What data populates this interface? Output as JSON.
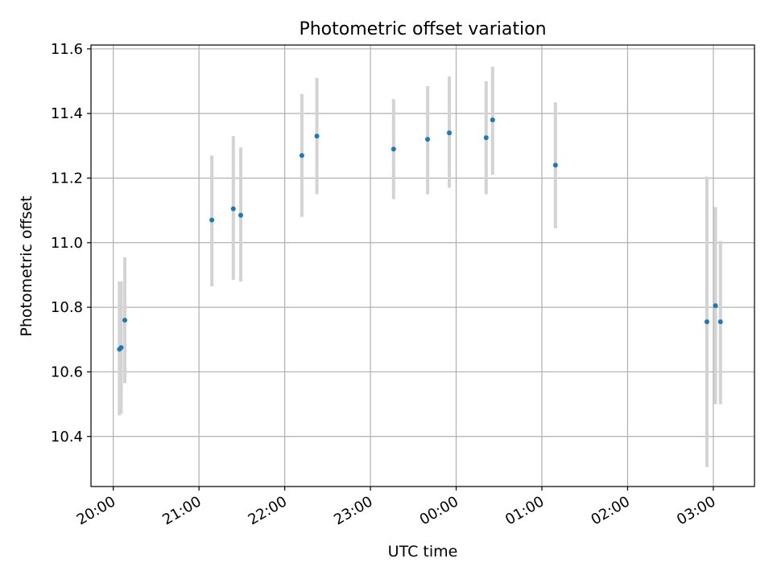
{
  "chart_data": {
    "type": "scatter",
    "title": "Photometric offset variation",
    "xlabel": "UTC time",
    "ylabel": "Photometric offset",
    "x_unit": "hours",
    "x_ticks": [
      {
        "value": 20,
        "label": "20:00"
      },
      {
        "value": 21,
        "label": "21:00"
      },
      {
        "value": 22,
        "label": "22:00"
      },
      {
        "value": 23,
        "label": "23:00"
      },
      {
        "value": 24,
        "label": "00:00"
      },
      {
        "value": 25,
        "label": "01:00"
      },
      {
        "value": 26,
        "label": "02:00"
      },
      {
        "value": 27,
        "label": "03:00"
      }
    ],
    "y_ticks": [
      {
        "value": 10.4,
        "label": "10.4"
      },
      {
        "value": 10.6,
        "label": "10.6"
      },
      {
        "value": 10.8,
        "label": "10.8"
      },
      {
        "value": 11.0,
        "label": "11.0"
      },
      {
        "value": 11.2,
        "label": "11.2"
      },
      {
        "value": 11.4,
        "label": "11.4"
      },
      {
        "value": 11.6,
        "label": "11.6"
      }
    ],
    "xlim": [
      19.74,
      27.48
    ],
    "ylim": [
      10.245,
      11.612
    ],
    "grid": true,
    "point_color": "#1f77b4",
    "error_bar_color": "#d3d3d3",
    "points": [
      {
        "x": 20.072,
        "y": 10.67,
        "ymin": 10.465,
        "ymax": 10.88
      },
      {
        "x": 20.092,
        "y": 10.675,
        "ymin": 10.47,
        "ymax": 10.88
      },
      {
        "x": 20.135,
        "y": 10.76,
        "ymin": 10.565,
        "ymax": 10.955
      },
      {
        "x": 21.15,
        "y": 11.07,
        "ymin": 10.865,
        "ymax": 11.27
      },
      {
        "x": 21.4,
        "y": 11.105,
        "ymin": 10.885,
        "ymax": 11.33
      },
      {
        "x": 21.487,
        "y": 11.085,
        "ymin": 10.88,
        "ymax": 11.295
      },
      {
        "x": 22.2,
        "y": 11.27,
        "ymin": 11.08,
        "ymax": 11.46
      },
      {
        "x": 22.375,
        "y": 11.33,
        "ymin": 11.15,
        "ymax": 11.51
      },
      {
        "x": 23.27,
        "y": 11.29,
        "ymin": 11.135,
        "ymax": 11.445
      },
      {
        "x": 23.667,
        "y": 11.32,
        "ymin": 11.15,
        "ymax": 11.485
      },
      {
        "x": 23.92,
        "y": 11.34,
        "ymin": 11.17,
        "ymax": 11.515
      },
      {
        "x": 24.35,
        "y": 11.325,
        "ymin": 11.15,
        "ymax": 11.5
      },
      {
        "x": 24.425,
        "y": 11.38,
        "ymin": 11.21,
        "ymax": 11.545
      },
      {
        "x": 25.158,
        "y": 11.24,
        "ymin": 11.045,
        "ymax": 11.435
      },
      {
        "x": 26.925,
        "y": 10.755,
        "ymin": 10.305,
        "ymax": 11.205
      },
      {
        "x": 27.025,
        "y": 10.805,
        "ymin": 10.5,
        "ymax": 11.11
      },
      {
        "x": 27.083,
        "y": 10.755,
        "ymin": 10.5,
        "ymax": 11.005
      }
    ]
  }
}
